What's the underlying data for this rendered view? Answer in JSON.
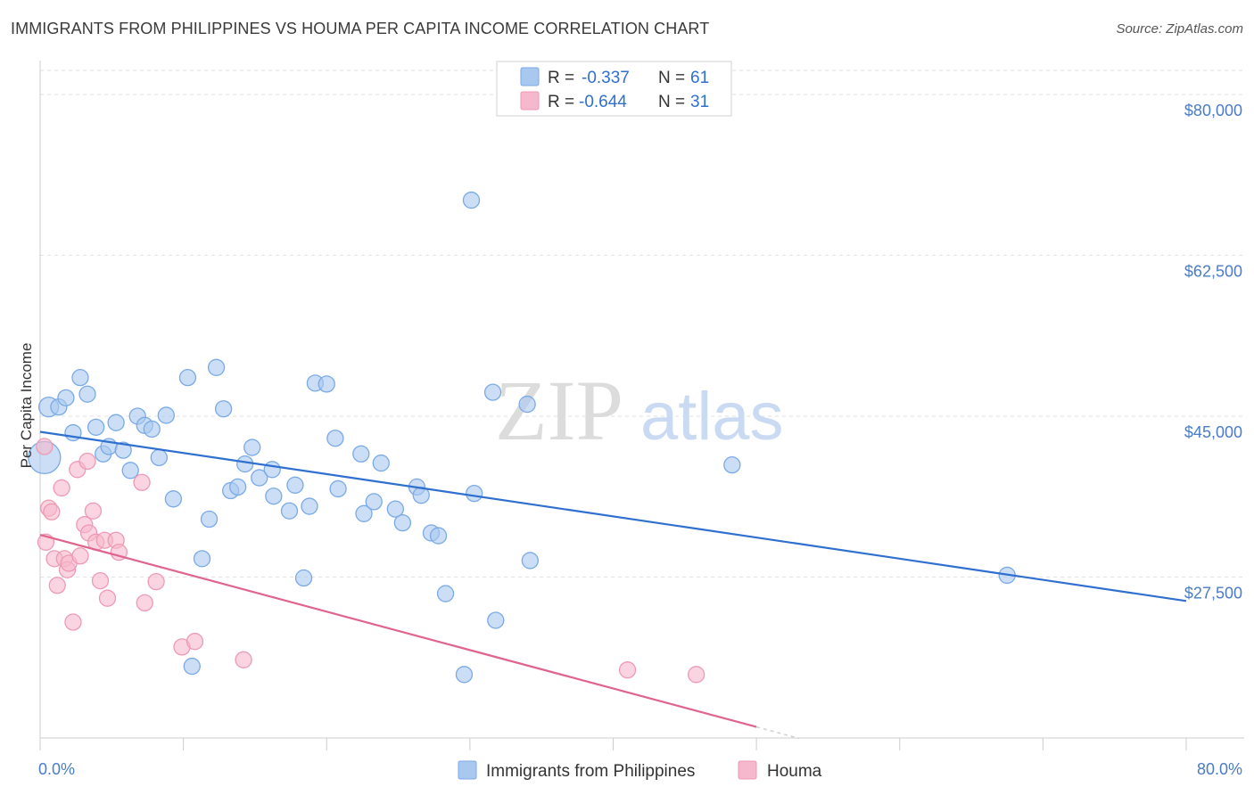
{
  "title": "IMMIGRANTS FROM PHILIPPINES VS HOUMA PER CAPITA INCOME CORRELATION CHART",
  "source": "Source: ZipAtlas.com",
  "watermark": {
    "zip": "ZIP",
    "atlas": "atlas"
  },
  "legend": {
    "rows": [
      {
        "r_label": "R =",
        "r_value": "-0.337",
        "n_label": "N =",
        "n_value": "61",
        "color": "#a9c8f0"
      },
      {
        "r_label": "R =",
        "r_value": "-0.644",
        "n_label": "N =",
        "n_value": "31",
        "color": "#f6b8cc"
      }
    ]
  },
  "chart_data": {
    "type": "scatter",
    "title": "IMMIGRANTS FROM PHILIPPINES VS HOUMA PER CAPITA INCOME CORRELATION CHART",
    "xlabel": "",
    "ylabel": "Per Capita Income",
    "xlim": [
      0,
      80
    ],
    "ylim": [
      10000,
      83000
    ],
    "x_tick_labels": [
      "0.0%",
      "80.0%"
    ],
    "y_ticks": [
      27500,
      45000,
      62500,
      80000
    ],
    "y_tick_labels": [
      "$27,500",
      "$45,000",
      "$62,500",
      "$80,000"
    ],
    "grid": true,
    "legend_position": "top-center",
    "series": [
      {
        "name": "Immigrants from Philippines",
        "color": "#7aaae6",
        "fill": "#a9c8f0",
        "trend": {
          "x0": 0,
          "y0": 43300,
          "x1": 80,
          "y1": 24900,
          "color": "#2f6fd0"
        },
        "points": [
          [
            0.3,
            40500,
            18
          ],
          [
            0.6,
            46000,
            11
          ],
          [
            1.3,
            46000,
            9
          ],
          [
            1.8,
            47000,
            9
          ],
          [
            2.3,
            43200,
            9
          ],
          [
            2.8,
            49200,
            9
          ],
          [
            3.3,
            47400,
            9
          ],
          [
            3.9,
            43800,
            9
          ],
          [
            4.4,
            40900,
            9
          ],
          [
            4.8,
            41700,
            9
          ],
          [
            5.3,
            44300,
            9
          ],
          [
            5.8,
            41300,
            9
          ],
          [
            6.3,
            39100,
            9
          ],
          [
            6.8,
            45000,
            9
          ],
          [
            7.3,
            44000,
            9
          ],
          [
            7.8,
            43600,
            9
          ],
          [
            8.3,
            40500,
            9
          ],
          [
            8.8,
            45100,
            9
          ],
          [
            9.3,
            36000,
            9
          ],
          [
            10.3,
            49200,
            9
          ],
          [
            10.6,
            17800,
            9
          ],
          [
            11.3,
            29500,
            9
          ],
          [
            11.8,
            33800,
            9
          ],
          [
            12.3,
            50300,
            9
          ],
          [
            12.8,
            45800,
            9
          ],
          [
            13.3,
            36900,
            9
          ],
          [
            13.8,
            37300,
            9
          ],
          [
            14.3,
            39800,
            9
          ],
          [
            14.8,
            41600,
            9
          ],
          [
            15.3,
            38300,
            9
          ],
          [
            16.3,
            36300,
            9
          ],
          [
            16.2,
            39200,
            9
          ],
          [
            17.4,
            34700,
            9
          ],
          [
            17.8,
            37500,
            9
          ],
          [
            18.4,
            27400,
            9
          ],
          [
            18.8,
            35200,
            9
          ],
          [
            19.2,
            48600,
            9
          ],
          [
            20.0,
            48500,
            9
          ],
          [
            20.6,
            42600,
            9
          ],
          [
            20.8,
            37100,
            9
          ],
          [
            22.4,
            40900,
            9
          ],
          [
            22.6,
            34400,
            9
          ],
          [
            23.3,
            35700,
            9
          ],
          [
            23.8,
            39900,
            9
          ],
          [
            24.8,
            34900,
            9
          ],
          [
            25.3,
            33400,
            9
          ],
          [
            26.3,
            37300,
            9
          ],
          [
            26.6,
            36400,
            9
          ],
          [
            27.3,
            32300,
            9
          ],
          [
            27.8,
            32000,
            9
          ],
          [
            28.3,
            25700,
            9
          ],
          [
            29.6,
            16900,
            9
          ],
          [
            30.1,
            68500,
            9
          ],
          [
            30.3,
            36600,
            9
          ],
          [
            31.6,
            47600,
            9
          ],
          [
            31.8,
            22800,
            9
          ],
          [
            34.0,
            46300,
            9
          ],
          [
            34.2,
            29300,
            9
          ],
          [
            48.3,
            39700,
            9
          ],
          [
            67.5,
            27700,
            9
          ]
        ]
      },
      {
        "name": "Houma",
        "color": "#ee9ab4",
        "fill": "#f6b8cc",
        "trend": {
          "x0": 0,
          "y0": 32100,
          "x1": 50,
          "y1": 11200,
          "color": "#e0648c",
          "dash_to_x": 53
        },
        "points": [
          [
            0.3,
            41700,
            9
          ],
          [
            0.4,
            31300,
            9
          ],
          [
            0.6,
            35000,
            9
          ],
          [
            0.8,
            34600,
            9
          ],
          [
            1.0,
            29500,
            9
          ],
          [
            1.2,
            26600,
            9
          ],
          [
            1.5,
            37200,
            9
          ],
          [
            1.7,
            29500,
            9
          ],
          [
            1.9,
            28300,
            9
          ],
          [
            2.0,
            29000,
            9
          ],
          [
            2.3,
            22600,
            9
          ],
          [
            2.6,
            39200,
            9
          ],
          [
            2.8,
            29800,
            9
          ],
          [
            3.1,
            33200,
            9
          ],
          [
            3.3,
            40100,
            9
          ],
          [
            3.4,
            32300,
            9
          ],
          [
            3.7,
            34700,
            9
          ],
          [
            3.9,
            31300,
            9
          ],
          [
            4.2,
            27100,
            9
          ],
          [
            4.5,
            31500,
            9
          ],
          [
            4.7,
            25200,
            9
          ],
          [
            5.3,
            31500,
            9
          ],
          [
            5.5,
            30200,
            9
          ],
          [
            7.1,
            37800,
            9
          ],
          [
            7.3,
            24700,
            9
          ],
          [
            8.1,
            27000,
            9
          ],
          [
            9.9,
            19900,
            9
          ],
          [
            10.8,
            20500,
            9
          ],
          [
            14.2,
            18500,
            9
          ],
          [
            41.0,
            17400,
            9
          ],
          [
            45.8,
            16900,
            9
          ]
        ]
      }
    ]
  }
}
